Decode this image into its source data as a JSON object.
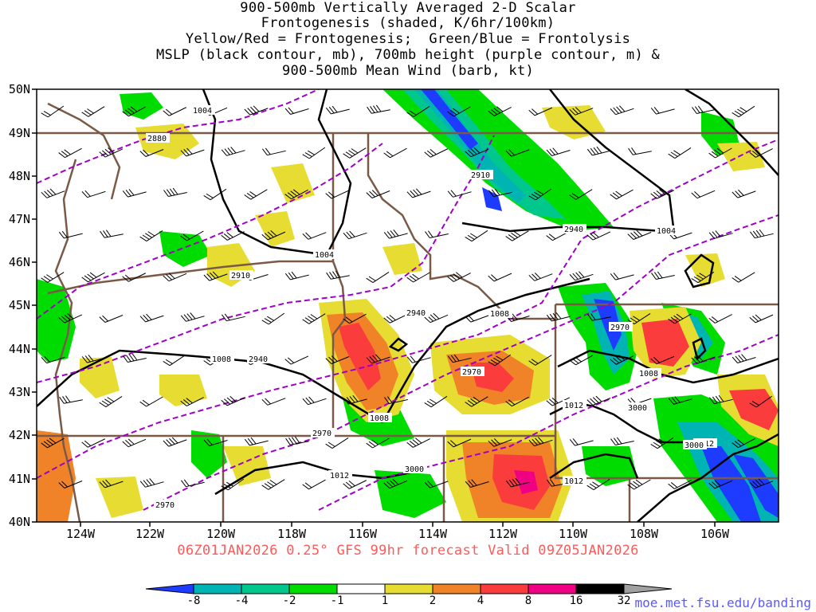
{
  "title": {
    "lines": [
      "900-500mb Vertically Averaged 2-D Scalar",
      "Frontogenesis (shaded, K/6hr/100km)",
      "Yellow/Red = Frontogenesis;  Green/Blue = Frontolysis",
      "MSLP (black contour, mb), 700mb height (purple contour, m) &",
      "900-500mb Mean Wind (barb, kt)"
    ]
  },
  "valid_line": "06Z01JAN2026 0.25° GFS 99hr forecast Valid 09Z05JAN2026",
  "credit": "moe.met.fsu.edu/banding",
  "axes": {
    "lat_labels": [
      "50N",
      "49N",
      "48N",
      "47N",
      "46N",
      "45N",
      "44N",
      "43N",
      "42N",
      "41N",
      "40N"
    ],
    "lon_labels": [
      "124W",
      "122W",
      "120W",
      "118W",
      "116W",
      "114W",
      "112W",
      "110W",
      "108W",
      "106W"
    ]
  },
  "colorbar": {
    "labels": [
      "-8",
      "-4",
      "-2",
      "-1",
      "1",
      "2",
      "4",
      "8",
      "16",
      "32"
    ],
    "colors": [
      "#1e3cff",
      "#00b4b4",
      "#00c88c",
      "#00dc00",
      "#ffffff",
      "#e6dc32",
      "#f08228",
      "#fa3c3c",
      "#f00082",
      "#000000"
    ],
    "end_color": "#a0a0a0"
  },
  "contour_labels": {
    "mslp": [
      "1004",
      "1004",
      "1004",
      "1008",
      "1008",
      "1008",
      "1008",
      "1012",
      "1012",
      "1012",
      "1012"
    ],
    "height": [
      "2880",
      "2910",
      "2910",
      "2940",
      "2940",
      "2940",
      "2970",
      "2970",
      "2970",
      "2970",
      "3000",
      "3000",
      "3000"
    ]
  },
  "colors": {
    "mslp": "#000000",
    "height": "#a000c8",
    "border": "#7a5a46",
    "barb": "#000000",
    "valid_text": "#ff5a5a",
    "credit_text": "#5a5aff"
  }
}
